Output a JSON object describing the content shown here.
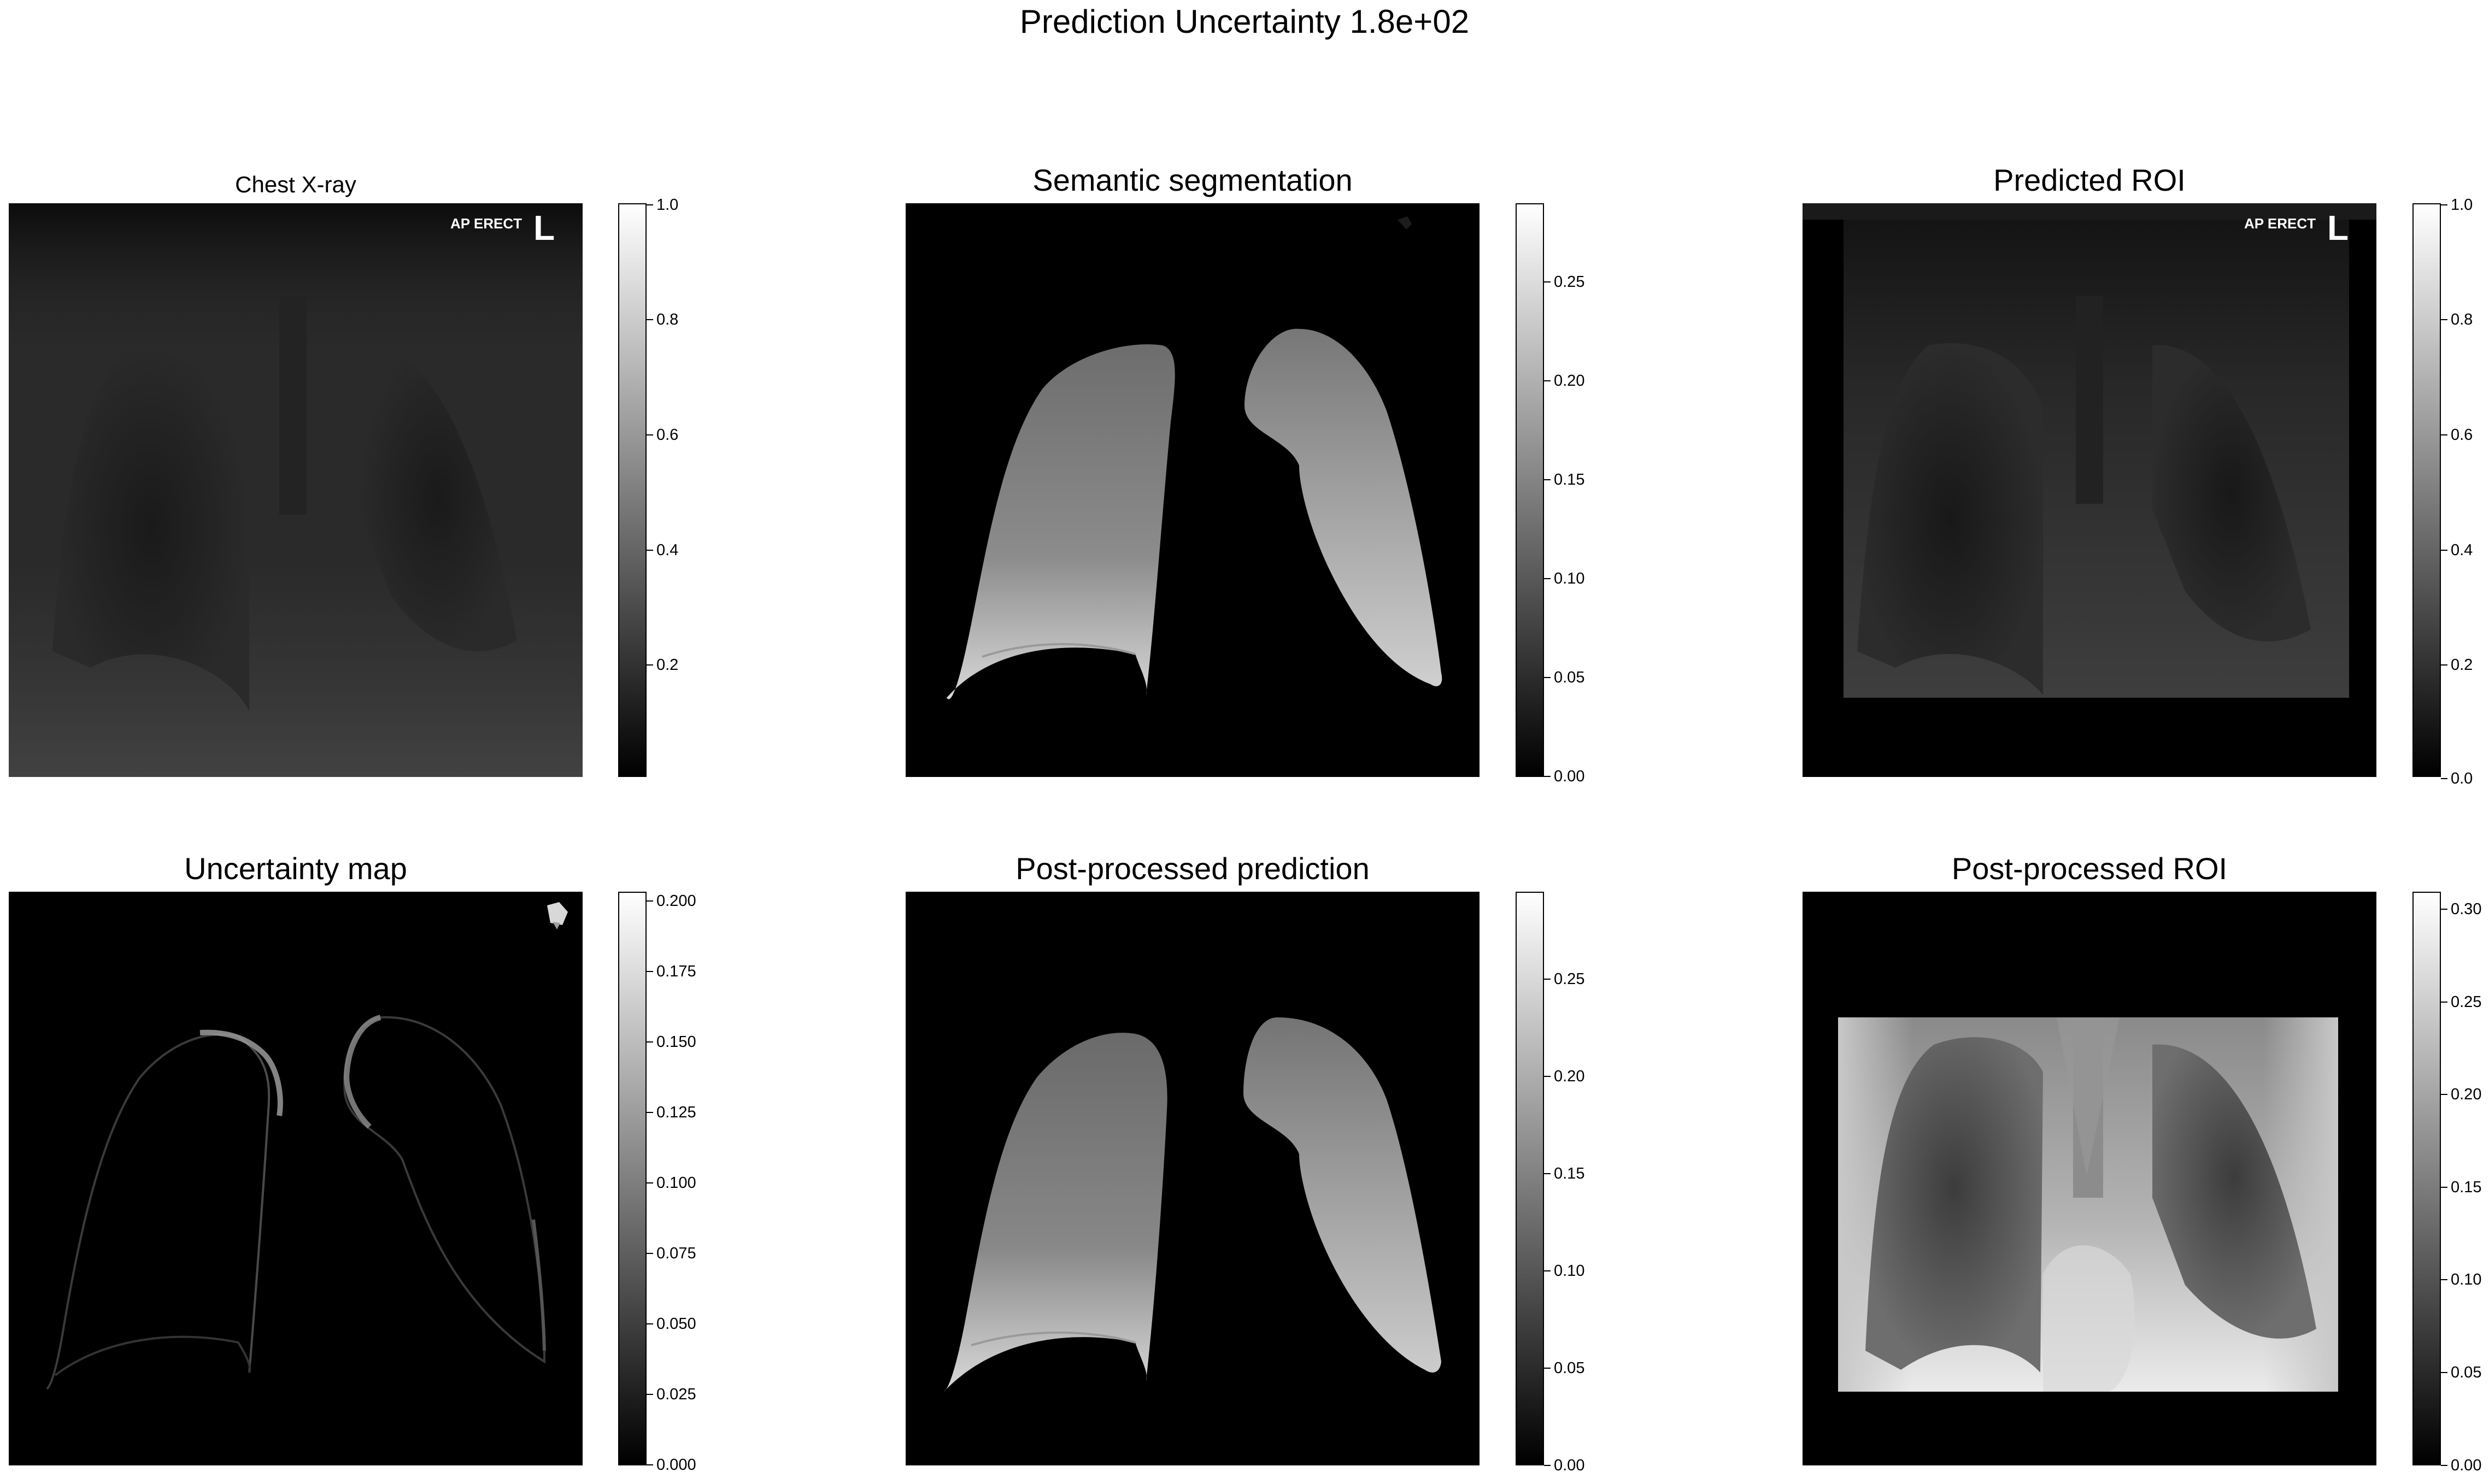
{
  "suptitle": "Prediction Uncertainty 1.8e+02",
  "panels": {
    "p1": {
      "title": "Chest X-ray",
      "overlay_label": "AP ERECT",
      "overlay_letter": "L",
      "ticks": [
        "1.0",
        "0.8",
        "0.6",
        "0.4",
        "0.2"
      ],
      "range": [
        0.02,
        1.0
      ]
    },
    "p2": {
      "title": "Semantic segmentation",
      "ticks": [
        "0.25",
        "0.20",
        "0.15",
        "0.10",
        "0.05",
        "0.00"
      ],
      "range": [
        0.0,
        0.29
      ]
    },
    "p3": {
      "title": "Predicted ROI",
      "overlay_label": "AP ERECT",
      "overlay_letter": "L",
      "ticks": [
        "1.0",
        "0.8",
        "0.6",
        "0.4",
        "0.2",
        "0.0"
      ],
      "range": [
        0.0,
        1.0
      ]
    },
    "p4": {
      "title": "Uncertainty map",
      "ticks": [
        "0.200",
        "0.175",
        "0.150",
        "0.125",
        "0.100",
        "0.075",
        "0.050",
        "0.025",
        "0.000"
      ],
      "range": [
        0.0,
        0.204
      ]
    },
    "p5": {
      "title": "Post-processed prediction",
      "ticks": [
        "0.25",
        "0.20",
        "0.15",
        "0.10",
        "0.05",
        "0.00"
      ],
      "range": [
        0.0,
        0.295
      ]
    },
    "p6": {
      "title": "Post-processed ROI",
      "ticks": [
        "0.30",
        "0.25",
        "0.20",
        "0.15",
        "0.10",
        "0.05",
        "0.00"
      ],
      "range": [
        0.0,
        0.31
      ]
    }
  }
}
